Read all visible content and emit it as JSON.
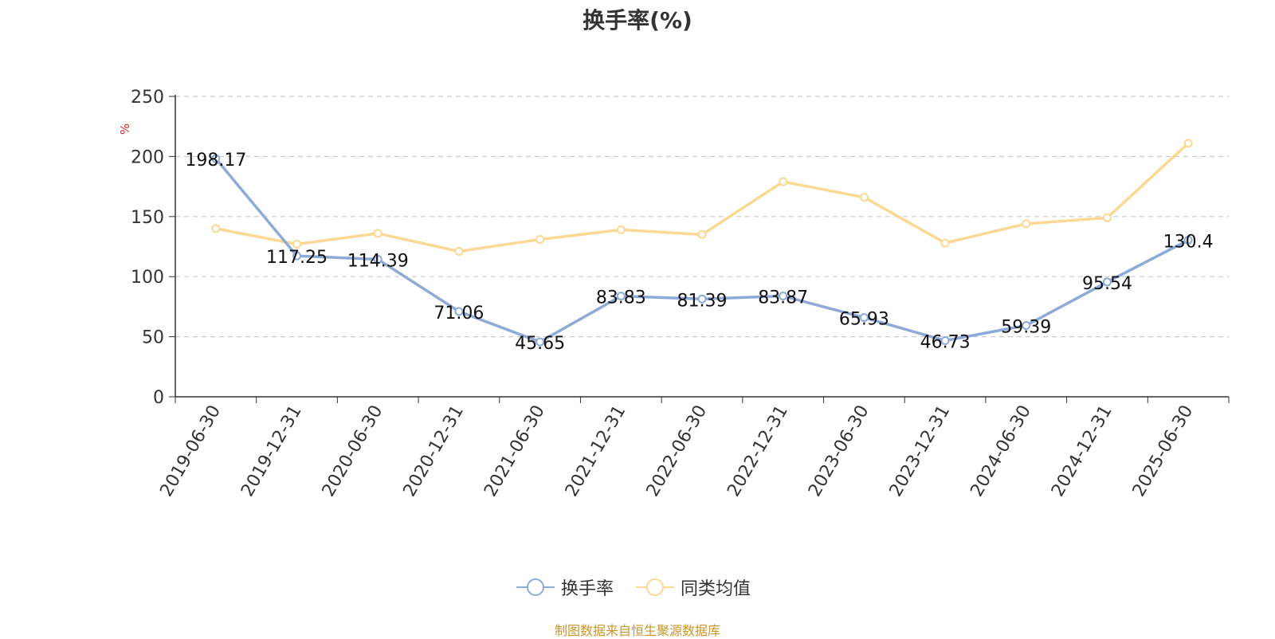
{
  "chart_data": {
    "type": "line",
    "title": "换手率(%)",
    "ylabel": "%",
    "xlabel": "",
    "ylim": [
      0,
      250
    ],
    "yticks": [
      0,
      50,
      100,
      150,
      200,
      250
    ],
    "grid": true,
    "legend_position": "bottom",
    "categories": [
      "2019-06-30",
      "2019-12-31",
      "2020-06-30",
      "2020-12-31",
      "2021-06-30",
      "2021-12-31",
      "2022-06-30",
      "2022-12-31",
      "2023-06-30",
      "2023-12-31",
      "2024-06-30",
      "2024-12-31",
      "2025-06-30"
    ],
    "series": [
      {
        "name": "换手率",
        "color": "#8eaad8",
        "values": [
          198.17,
          117.25,
          114.39,
          71.06,
          45.65,
          83.83,
          81.39,
          83.87,
          65.93,
          46.73,
          59.39,
          95.54,
          130.4
        ],
        "labels": [
          "198.17",
          "117.25",
          "114.39",
          "71.06",
          "45.65",
          "83.83",
          "81.39",
          "83.87",
          "65.93",
          "46.73",
          "59.39",
          "95.54",
          "130.4"
        ]
      },
      {
        "name": "同类均值",
        "color": "#fbd893",
        "values": [
          140,
          127,
          136,
          121,
          131,
          139,
          135,
          179,
          166,
          128,
          144,
          149,
          211
        ]
      }
    ]
  },
  "footer": {
    "source": "制图数据来自恒生聚源数据库"
  }
}
